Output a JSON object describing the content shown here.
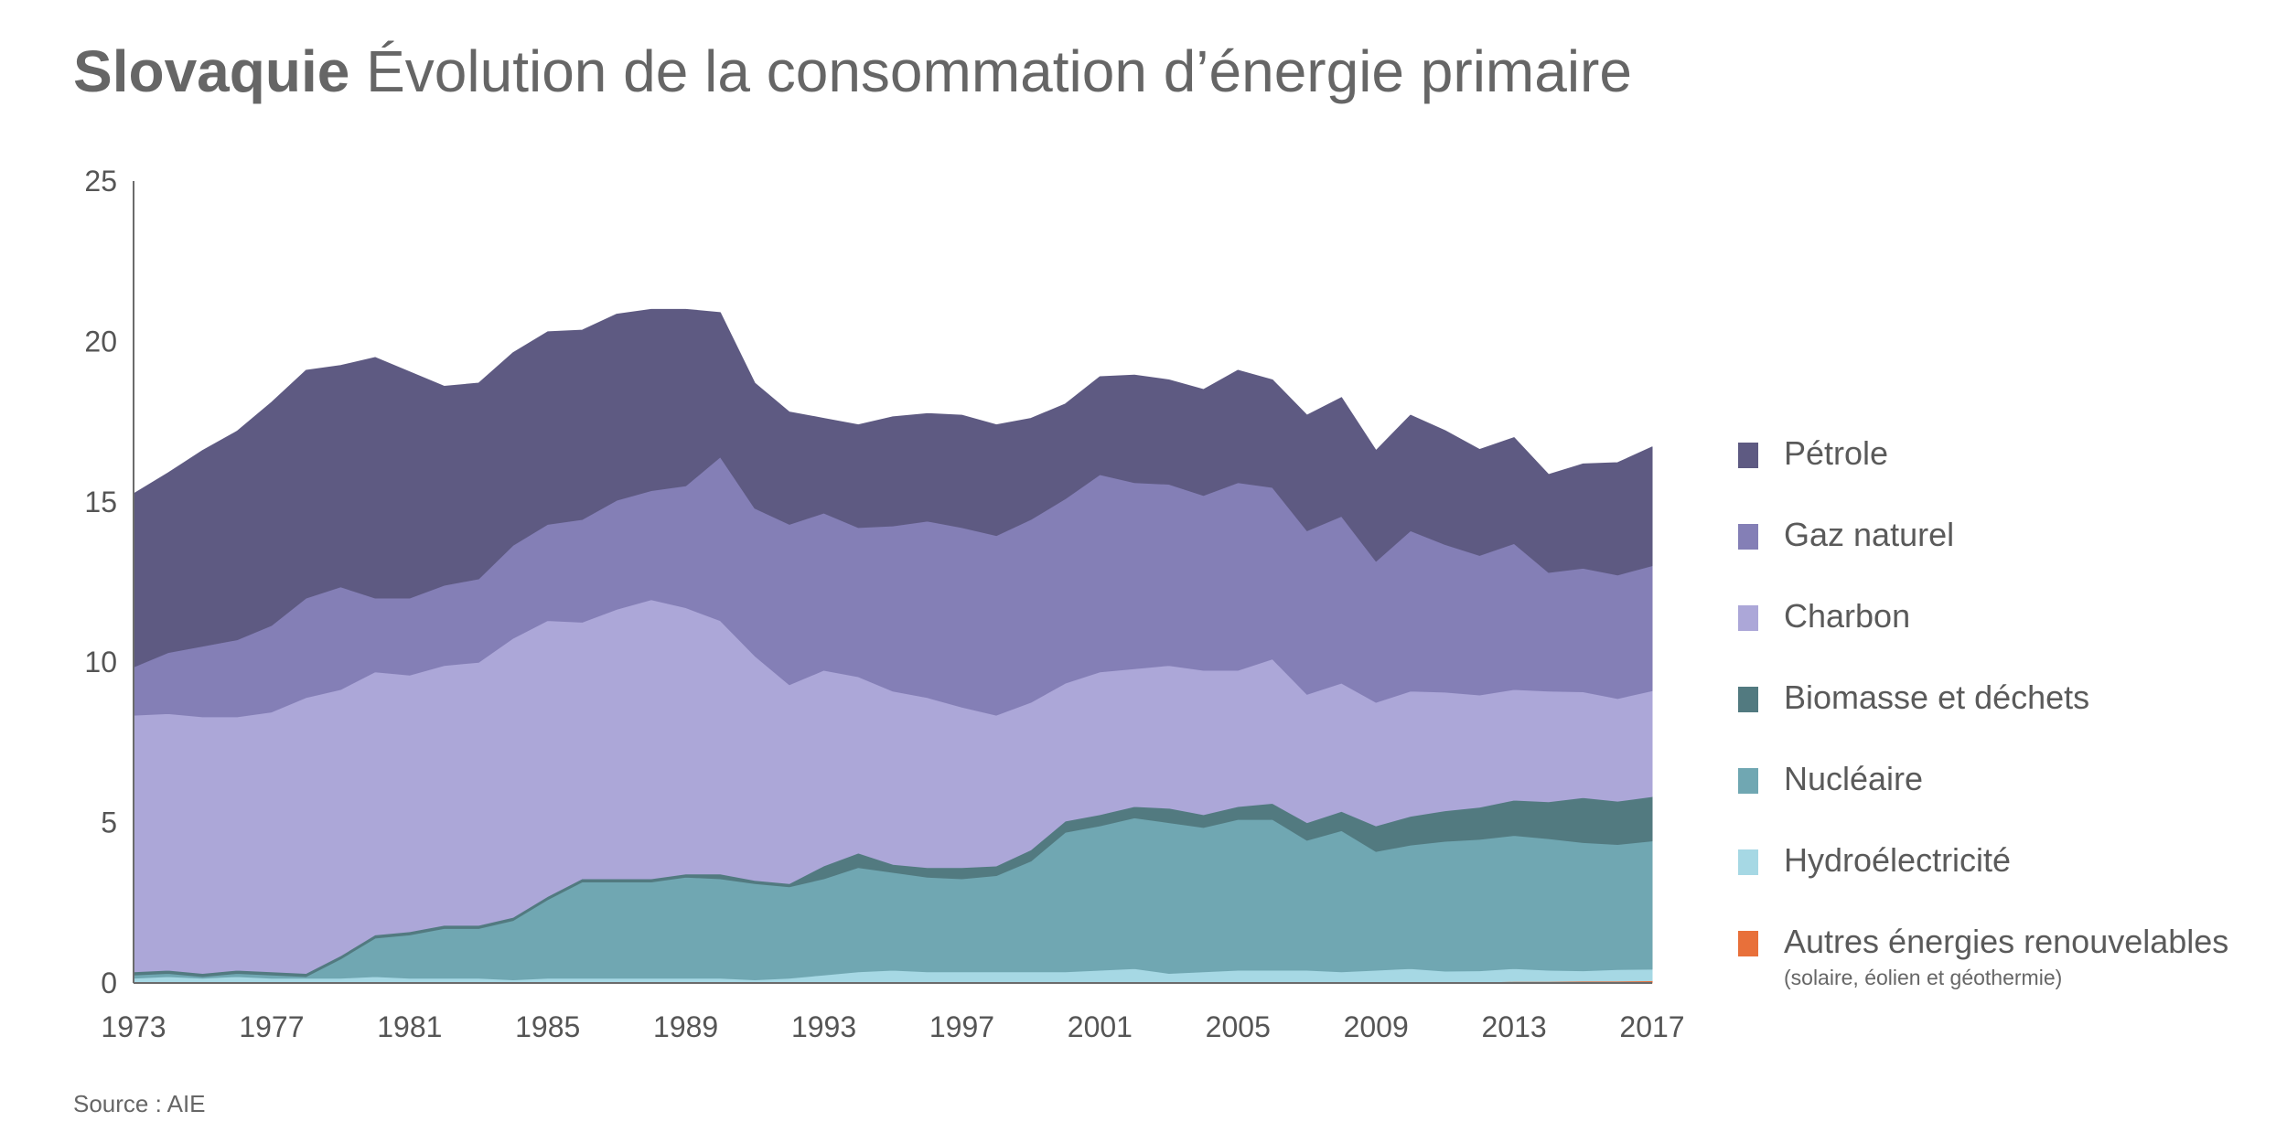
{
  "header": {
    "country": "Slovaquie",
    "subtitle": "Évolution de la consommation d’énergie primaire"
  },
  "source": "Source : AIE",
  "chart_data": {
    "type": "area",
    "stacked": true,
    "title": "Slovaquie Évolution de la consommation d’énergie primaire",
    "xlabel": "",
    "ylabel": "",
    "ylim": [
      0,
      25
    ],
    "xlim": [
      1973,
      2017
    ],
    "yticks": [
      "0",
      "5",
      "10",
      "15",
      "20",
      "25"
    ],
    "xticks": [
      "1973",
      "1977",
      "1981",
      "1985",
      "1989",
      "1993",
      "1997",
      "2001",
      "2005",
      "2009",
      "2013",
      "2017"
    ],
    "grid": false,
    "legend_position": "right",
    "x": [
      1973,
      1974,
      1975,
      1976,
      1977,
      1978,
      1979,
      1980,
      1981,
      1982,
      1983,
      1984,
      1985,
      1986,
      1987,
      1988,
      1989,
      1990,
      1991,
      1992,
      1993,
      1994,
      1995,
      1996,
      1997,
      1998,
      1999,
      2000,
      2001,
      2002,
      2003,
      2004,
      2005,
      2006,
      2007,
      2008,
      2009,
      2010,
      2011,
      2012,
      2013,
      2014,
      2015,
      2016,
      2017
    ],
    "series": [
      {
        "name": "Autres énergies renouvelables",
        "note": "(solaire, éolien et géothermie)",
        "color": "#e8703a",
        "values": [
          0,
          0,
          0,
          0,
          0,
          0,
          0,
          0,
          0,
          0,
          0,
          0,
          0,
          0,
          0,
          0,
          0,
          0,
          0,
          0,
          0,
          0,
          0,
          0,
          0,
          0,
          0,
          0,
          0,
          0,
          0,
          0,
          0,
          0,
          0,
          0,
          0,
          0,
          0.02,
          0.03,
          0.05,
          0.05,
          0.06,
          0.06,
          0.07
        ]
      },
      {
        "name": "Hydroélectricité",
        "color": "#a6d8e4",
        "values": [
          0.15,
          0.2,
          0.15,
          0.2,
          0.15,
          0.15,
          0.15,
          0.2,
          0.15,
          0.15,
          0.15,
          0.1,
          0.15,
          0.15,
          0.15,
          0.15,
          0.15,
          0.15,
          0.1,
          0.15,
          0.25,
          0.35,
          0.4,
          0.35,
          0.35,
          0.35,
          0.35,
          0.35,
          0.4,
          0.45,
          0.3,
          0.35,
          0.4,
          0.4,
          0.4,
          0.35,
          0.4,
          0.45,
          0.35,
          0.35,
          0.4,
          0.35,
          0.32,
          0.36,
          0.36
        ]
      },
      {
        "name": "Nucléaire",
        "color": "#70a7b2",
        "values": [
          0.1,
          0.1,
          0.05,
          0.1,
          0.1,
          0.05,
          0.6,
          1.2,
          1.35,
          1.55,
          1.55,
          1.85,
          2.45,
          3.0,
          3.0,
          3.0,
          3.15,
          3.1,
          3.0,
          2.85,
          3.0,
          3.25,
          3.05,
          2.95,
          2.9,
          3.0,
          3.45,
          4.35,
          4.5,
          4.7,
          4.7,
          4.5,
          4.7,
          4.7,
          4.05,
          4.4,
          3.7,
          3.85,
          4.05,
          4.1,
          4.15,
          4.1,
          4.0,
          3.9,
          4.0
        ]
      },
      {
        "name": "Biomasse et déchets",
        "color": "#527a80",
        "values": [
          0.1,
          0.1,
          0.1,
          0.1,
          0.1,
          0.1,
          0.1,
          0.1,
          0.1,
          0.1,
          0.1,
          0.1,
          0.1,
          0.1,
          0.1,
          0.1,
          0.1,
          0.15,
          0.1,
          0.1,
          0.4,
          0.45,
          0.25,
          0.3,
          0.35,
          0.3,
          0.35,
          0.35,
          0.35,
          0.35,
          0.45,
          0.4,
          0.4,
          0.5,
          0.55,
          0.6,
          0.8,
          0.9,
          0.95,
          1.0,
          1.1,
          1.15,
          1.4,
          1.35,
          1.38
        ]
      },
      {
        "name": "Charbon",
        "color": "#aca7d8",
        "values": [
          8.0,
          8.0,
          8.0,
          7.9,
          8.1,
          8.6,
          8.3,
          8.2,
          8.0,
          8.1,
          8.2,
          8.7,
          8.6,
          8.0,
          8.4,
          8.7,
          8.3,
          7.9,
          7.0,
          6.2,
          6.1,
          5.5,
          5.4,
          5.3,
          5.0,
          4.7,
          4.6,
          4.3,
          4.45,
          4.3,
          4.45,
          4.5,
          4.25,
          4.5,
          4.0,
          4.0,
          3.85,
          3.9,
          3.7,
          3.5,
          3.45,
          3.45,
          3.3,
          3.2,
          3.3
        ]
      },
      {
        "name": "Gaz naturel",
        "color": "#847fb6",
        "values": [
          1.5,
          1.9,
          2.2,
          2.4,
          2.7,
          3.1,
          3.2,
          2.3,
          2.4,
          2.5,
          2.6,
          2.9,
          3.0,
          3.2,
          3.4,
          3.4,
          3.8,
          5.1,
          4.6,
          5.0,
          4.9,
          4.65,
          5.15,
          5.5,
          5.6,
          5.6,
          5.7,
          5.75,
          6.15,
          5.8,
          5.65,
          5.45,
          5.85,
          5.35,
          5.1,
          5.2,
          4.4,
          5.0,
          4.6,
          4.35,
          4.55,
          3.7,
          3.85,
          3.85,
          3.9
        ]
      },
      {
        "name": "Pétrole",
        "color": "#5e5a82",
        "values": [
          5.4,
          5.6,
          6.1,
          6.5,
          6.95,
          7.1,
          6.9,
          7.5,
          7.05,
          6.2,
          6.1,
          6.0,
          6.0,
          5.9,
          5.8,
          5.65,
          5.5,
          4.5,
          3.9,
          3.5,
          2.95,
          3.2,
          3.4,
          3.35,
          3.5,
          3.45,
          3.15,
          2.95,
          3.05,
          3.35,
          3.25,
          3.3,
          3.5,
          3.35,
          3.6,
          3.7,
          3.45,
          3.6,
          3.55,
          3.3,
          3.3,
          3.05,
          3.25,
          3.5,
          3.7
        ]
      }
    ]
  },
  "legend_items": [
    {
      "label": "Pétrole",
      "color": "#5e5a82"
    },
    {
      "label": "Gaz naturel",
      "color": "#847fb6"
    },
    {
      "label": "Charbon",
      "color": "#aca7d8"
    },
    {
      "label": "Biomasse et déchets",
      "color": "#527a80"
    },
    {
      "label": "Nucléaire",
      "color": "#70a7b2"
    },
    {
      "label": "Hydroélectricité",
      "color": "#a6d8e4"
    },
    {
      "label": "Autres énergies renouvelables",
      "note": "(solaire, éolien et géothermie)",
      "color": "#e8703a"
    }
  ]
}
